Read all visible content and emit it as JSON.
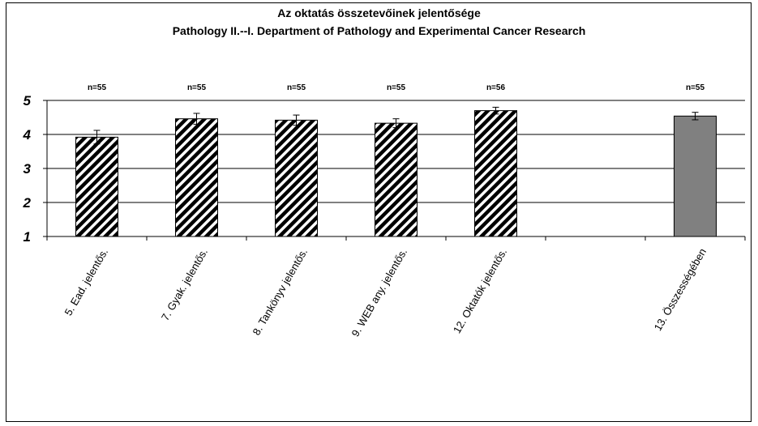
{
  "chart_data": {
    "type": "bar",
    "title": "Az oktatás összetevőinek jelentősége",
    "subtitle": "Pathology II.--I. Department of Pathology and Experimental Cancer Research",
    "categories": [
      "5. Ead. jelentős.",
      "7. Gyak. jelentős.",
      "8. Tankönyv jelentős.",
      "9. WEB any. jelentős.",
      "12. Oktatók jelentős.",
      "",
      "13. Összességében"
    ],
    "values": [
      3.92,
      4.46,
      4.42,
      4.33,
      4.7,
      null,
      4.54
    ],
    "errors": [
      0.2,
      0.16,
      0.15,
      0.13,
      0.1,
      null,
      0.11
    ],
    "n_labels": [
      "n=55",
      "n=55",
      "n=55",
      "n=55",
      "n=56",
      "",
      "n=55"
    ],
    "patterns": [
      "hatched",
      "hatched",
      "hatched",
      "hatched",
      "hatched",
      "",
      "solid"
    ],
    "colors": {
      "hatch_dark": "#000000",
      "hatch_light": "#ffffff",
      "solid_bar": "#808080"
    },
    "ylim": [
      1,
      5
    ],
    "yticks": [
      1,
      2,
      3,
      4,
      5
    ],
    "grid": true,
    "xlabel": "",
    "ylabel": ""
  }
}
